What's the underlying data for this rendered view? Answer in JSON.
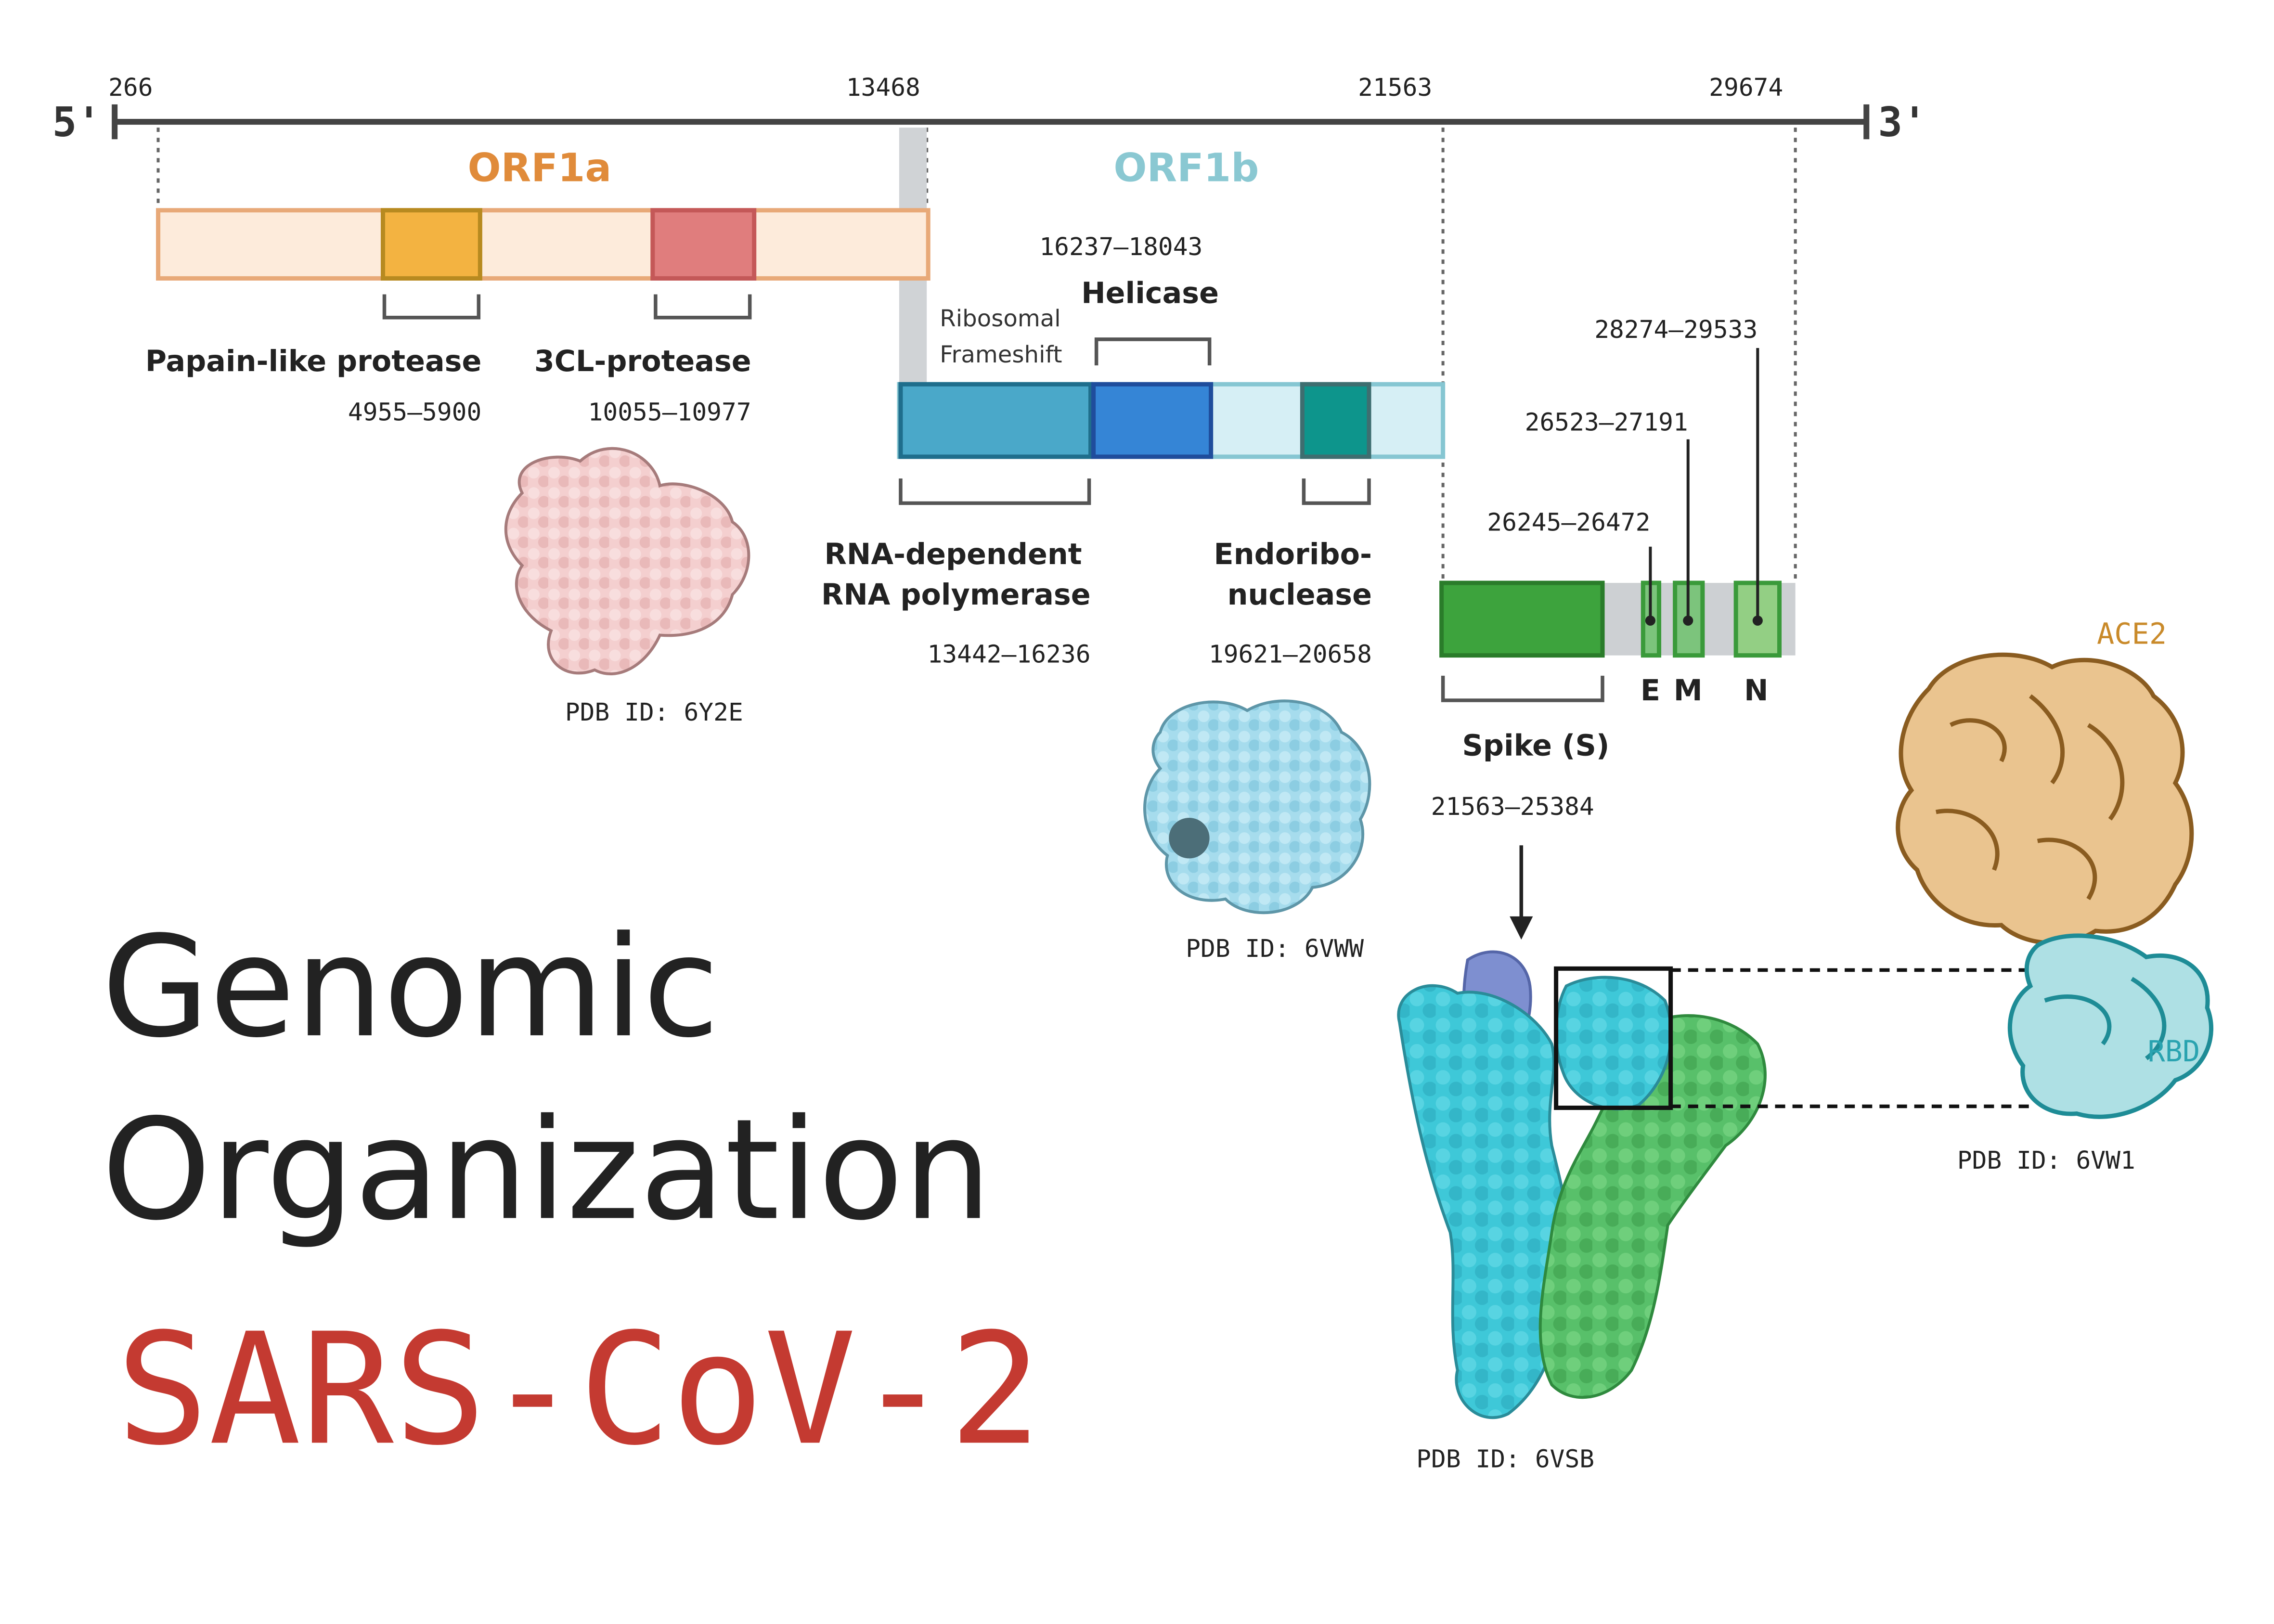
{
  "genome_axis": {
    "five_prime": "5'",
    "three_prime": "3'",
    "ticks": [
      "266",
      "13468",
      "21563",
      "29674"
    ]
  },
  "orf1a": {
    "label": "ORF1a",
    "color": "#e08b3a",
    "domains": [
      {
        "name": "Papain-like protease",
        "range": "4955—5900",
        "color": "#f3b341"
      },
      {
        "name": "3CL-protease",
        "range": "10055—10977",
        "color": "#e07d7d"
      }
    ]
  },
  "orf1b": {
    "label": "ORF1b",
    "color": "#8ac8d2",
    "frameshift_label": [
      "Ribosomal",
      "Frameshift"
    ],
    "domains": [
      {
        "name": [
          "RNA-dependent",
          "RNA polymerase"
        ],
        "range": "13442—16236",
        "color": "#4aa8c9"
      },
      {
        "name": [
          "Helicase"
        ],
        "range": "16237—18043",
        "color": "#3585d6"
      },
      {
        "name": [
          "Endoribo-",
          "nuclease"
        ],
        "range": "19621—20658",
        "color": "#0d958c"
      }
    ]
  },
  "structural": {
    "spike": {
      "name": "Spike (S)",
      "range": "21563—25384",
      "color": "#3da33d"
    },
    "genes": [
      {
        "name": "E",
        "range": "26245—26472"
      },
      {
        "name": "M",
        "range": "26523—27191"
      },
      {
        "name": "N",
        "range": "28274—29533"
      }
    ]
  },
  "structures": {
    "protease": "PDB ID: 6Y2E",
    "endoribonuclease": "PDB ID: 6VWW",
    "spike": "PDB ID: 6VSB",
    "ace2_complex": "PDB ID: 6VW1",
    "ace2_label": "ACE2",
    "rbd_label": "RBD"
  },
  "title": {
    "line1": "Genomic",
    "line2": "Organization",
    "line3": "SARS-CoV-2"
  },
  "colors": {
    "axis": "#444444",
    "title": "#222222",
    "virus_name": "#c43a31",
    "ace2": "#c98a2a",
    "rbd": "#2aa3b0"
  }
}
